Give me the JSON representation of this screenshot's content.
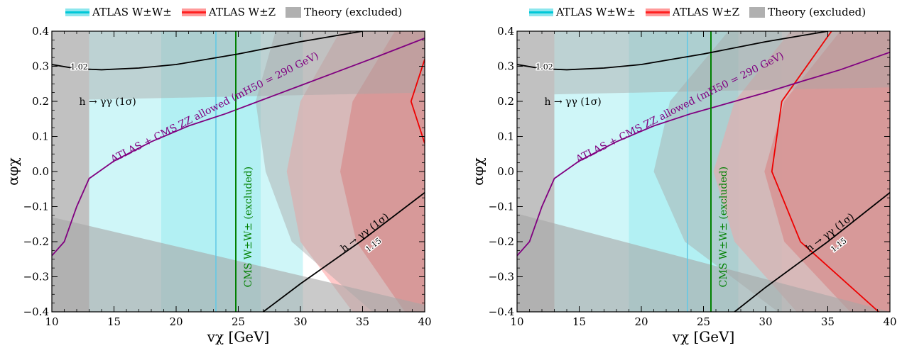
{
  "legend": [
    {
      "label": "ATLAS W±W±",
      "kind": "line",
      "color": "#00c8d8"
    },
    {
      "label": "ATLAS W±Z",
      "kind": "line",
      "color": "#ff2020"
    },
    {
      "label": "Theory (excluded)",
      "kind": "box",
      "color": "#b0b0b0"
    }
  ],
  "colors": {
    "ww_band": "#a8eef2",
    "ww_line": "#5fc8e6",
    "wz_light": "#ffc0c0",
    "wz_dark": "#ff8080",
    "wz_line": "#ee0000",
    "theory": "#a6a6a6",
    "zz_curve": "#800080",
    "cms_line": "#008000",
    "h_curve": "#000000"
  },
  "chart_data": [
    {
      "type": "area",
      "xlabel": "vχ [GeV]",
      "ylabel": "αφχ",
      "xlim": [
        10,
        40
      ],
      "ylim": [
        -0.4,
        0.4
      ],
      "xticks": [
        "10",
        "15",
        "20",
        "25",
        "30",
        "35",
        "40"
      ],
      "yticks": [
        "−0.4",
        "−0.3",
        "−0.2",
        "−0.1",
        "0.0",
        "0.1",
        "0.2",
        "0.3",
        "0.4"
      ],
      "atlas_ww": {
        "outer": [
          13.0,
          30.2
        ],
        "inner": [
          18.8,
          26.8
        ],
        "central": 23.2
      },
      "atlas_wz": {
        "dark": {
          "y": [
            -0.4,
            -0.2,
            0.0,
            0.2,
            0.4
          ],
          "left": [
            38.4,
            34.5,
            33.2,
            34.2,
            37.6
          ],
          "right": [
            40,
            40,
            40,
            40,
            40
          ]
        },
        "light": {
          "y": [
            -0.4,
            -0.2,
            0.0,
            0.2,
            0.4
          ],
          "left": [
            34.2,
            30.0,
            28.9,
            30.0,
            33.2
          ],
          "right": [
            40,
            40,
            40,
            40,
            40
          ]
        },
        "central": {
          "y": [
            0.08,
            0.2,
            0.32
          ],
          "x": [
            40.0,
            38.9,
            40.0
          ]
        }
      },
      "theory_excluded": {
        "left_x": [
          10,
          13
        ],
        "top_left": [
          0.145,
          0.205,
          0.4
        ],
        "top_band": {
          "x": [
            13,
            40
          ],
          "y_bottom": [
            0.4,
            0.4
          ]
        },
        "bottom_band": {
          "x": [
            10,
            40
          ],
          "y_top": [
            -0.13,
            -0.38
          ]
        },
        "grey_shape": {
          "y": [
            -0.4,
            -0.2,
            0.0,
            0.2,
            0.4
          ],
          "left": [
            35.8,
            29.3,
            27.2,
            26.4,
            28.0
          ],
          "right": [
            40,
            40,
            40,
            40,
            40
          ]
        }
      },
      "zz_allowed": {
        "label": "ATLAS + CMS ZZ allowed (mH50 = 290 GeV)",
        "x": [
          10.0,
          11.0,
          12.0,
          13.0,
          15.0,
          18.0,
          21.0,
          24.0,
          27.0,
          30.0,
          33.0,
          36.0,
          40.0
        ],
        "y": [
          -0.24,
          -0.2,
          -0.1,
          -0.02,
          0.03,
          0.085,
          0.13,
          0.165,
          0.205,
          0.245,
          0.285,
          0.325,
          0.38
        ]
      },
      "cms_ww": {
        "x": 24.8,
        "label": "CMS W±W± (excluded)"
      },
      "h_upper": {
        "label": "1.02",
        "annotation": "h → γγ (1σ)",
        "x": [
          10,
          12,
          14,
          17,
          20,
          25,
          30,
          35
        ],
        "y": [
          0.305,
          0.293,
          0.29,
          0.295,
          0.305,
          0.335,
          0.37,
          0.4
        ]
      },
      "h_lower": {
        "label": "1.15",
        "annotation": "h → γγ (1σ)",
        "x": [
          27.0,
          30.0,
          35.0,
          40.0
        ],
        "y": [
          -0.4,
          -0.32,
          -0.195,
          -0.06
        ]
      }
    },
    {
      "type": "area",
      "xlabel": "vχ [GeV]",
      "ylabel": "αφχ",
      "xlim": [
        10,
        40
      ],
      "ylim": [
        -0.4,
        0.4
      ],
      "xticks": [
        "10",
        "15",
        "20",
        "25",
        "30",
        "35",
        "40"
      ],
      "yticks": [
        "−0.4",
        "−0.3",
        "−0.2",
        "−0.1",
        "0.0",
        "0.1",
        "0.2",
        "0.3",
        "0.4"
      ],
      "atlas_ww": {
        "outer": [
          13.0,
          31.3
        ],
        "inner": [
          19.0,
          27.8
        ],
        "central": 23.7
      },
      "atlas_wz": {
        "dark": {
          "y": [
            -0.4,
            -0.2,
            0.0,
            0.2,
            0.4
          ],
          "left": [
            36.8,
            31.5,
            29.9,
            31.5,
            36.0
          ],
          "right": [
            40,
            40,
            40,
            40,
            40
          ]
        },
        "light": {
          "y": [
            -0.4,
            -0.2,
            0.0,
            0.2,
            0.4
          ],
          "left": [
            32.5,
            27.5,
            25.8,
            27.5,
            32.0
          ],
          "right": [
            40,
            40,
            40,
            40,
            40
          ]
        },
        "central": {
          "y": [
            -0.4,
            -0.2,
            0.0,
            0.2,
            0.4
          ],
          "x": [
            39.1,
            32.8,
            30.5,
            31.3,
            35.3
          ]
        }
      },
      "theory_excluded": {
        "left_x": [
          10,
          13
        ],
        "top_left": [
          0.12,
          0.22,
          0.4
        ],
        "top_band": {
          "x": [
            13,
            40
          ],
          "y_bottom": [
            0.4,
            0.4
          ]
        },
        "bottom_band": {
          "x": [
            10,
            40
          ],
          "y_top": [
            -0.12,
            -0.4
          ]
        },
        "grey_shape": {
          "y": [
            -0.4,
            -0.2,
            0.0,
            0.2,
            0.4
          ],
          "left": [
            31.0,
            23.5,
            21.0,
            22.3,
            27.0
          ],
          "right": [
            40,
            40,
            40,
            40,
            40
          ]
        }
      },
      "zz_allowed": {
        "label": "ATLAS + CMS ZZ allowed (mH50 = 290 GeV)",
        "x": [
          10.0,
          11.0,
          12.0,
          13.0,
          15.0,
          18.0,
          21.0,
          24.0,
          27.0,
          30.0,
          33.0,
          36.0,
          40.0
        ],
        "y": [
          -0.24,
          -0.2,
          -0.1,
          -0.02,
          0.03,
          0.085,
          0.13,
          0.165,
          0.195,
          0.225,
          0.258,
          0.29,
          0.34
        ]
      },
      "cms_ww": {
        "x": 25.6,
        "label": "CMS W±W± (excluded)"
      },
      "h_upper": {
        "label": "1.02",
        "annotation": "h → γγ (1σ)",
        "x": [
          10,
          12,
          14,
          17,
          20,
          25,
          30,
          35
        ],
        "y": [
          0.305,
          0.293,
          0.29,
          0.295,
          0.305,
          0.335,
          0.37,
          0.4
        ]
      },
      "h_lower": {
        "label": "1.15",
        "annotation": "h → γγ (1σ)",
        "x": [
          27.5,
          30.0,
          35.0,
          40.0
        ],
        "y": [
          -0.4,
          -0.33,
          -0.2,
          -0.06
        ]
      }
    }
  ]
}
